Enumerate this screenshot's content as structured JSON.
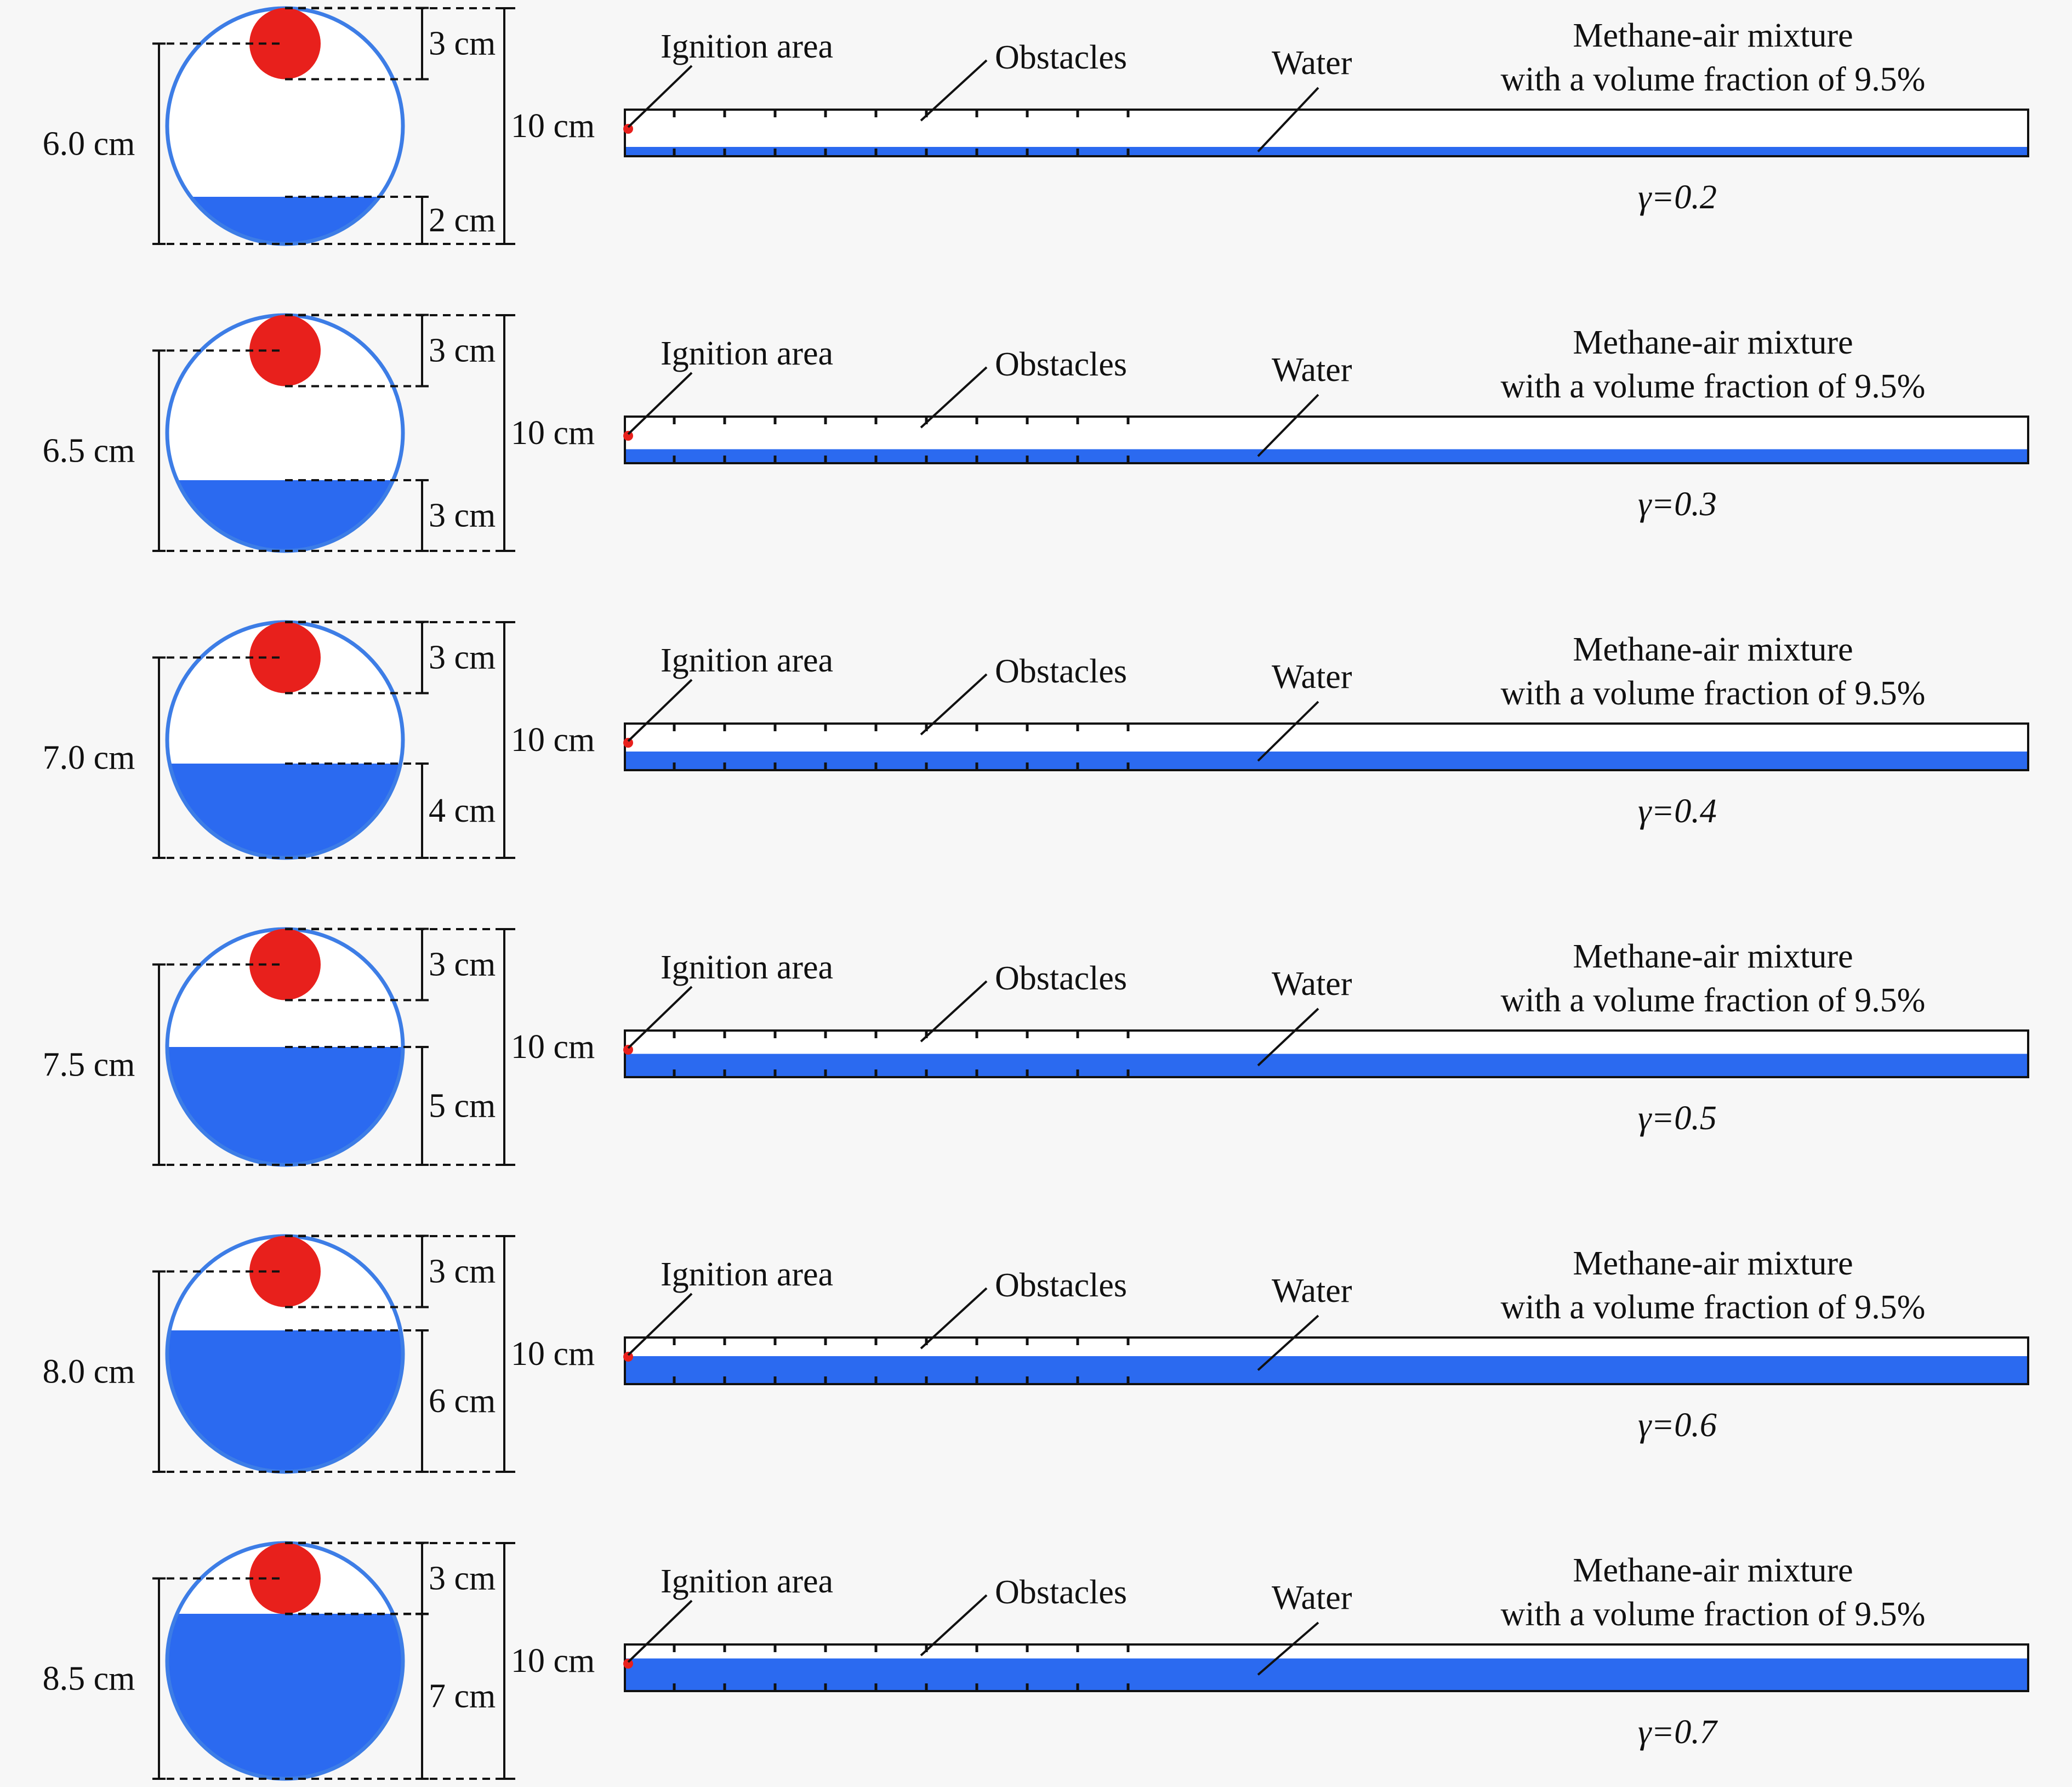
{
  "colors": {
    "water": "#2b6af0",
    "ignition": "#e8201c",
    "outline": "#3d7de6",
    "background": "#f7f7f7"
  },
  "labels": {
    "ignition": "Ignition area",
    "obstacles": "Obstacles",
    "water": "Water",
    "mixture_line1": "Methane-air mixture",
    "mixture_line2": "with a volume fraction of 9.5%",
    "top_dim": "3 cm",
    "diameter": "10 cm"
  },
  "cases": [
    {
      "gamma_label": "γ=0.2",
      "gamma": 0.2,
      "ignition_height": "6.0 cm",
      "water_depth": "2 cm"
    },
    {
      "gamma_label": "γ=0.3",
      "gamma": 0.3,
      "ignition_height": "6.5 cm",
      "water_depth": "3 cm"
    },
    {
      "gamma_label": "γ=0.4",
      "gamma": 0.4,
      "ignition_height": "7.0 cm",
      "water_depth": "4 cm"
    },
    {
      "gamma_label": "γ=0.5",
      "gamma": 0.5,
      "ignition_height": "7.5 cm",
      "water_depth": "5 cm"
    },
    {
      "gamma_label": "γ=0.6",
      "gamma": 0.6,
      "ignition_height": "8.0 cm",
      "water_depth": "6 cm"
    },
    {
      "gamma_label": "γ=0.7",
      "gamma": 0.7,
      "ignition_height": "8.5 cm",
      "water_depth": "7 cm"
    }
  ]
}
